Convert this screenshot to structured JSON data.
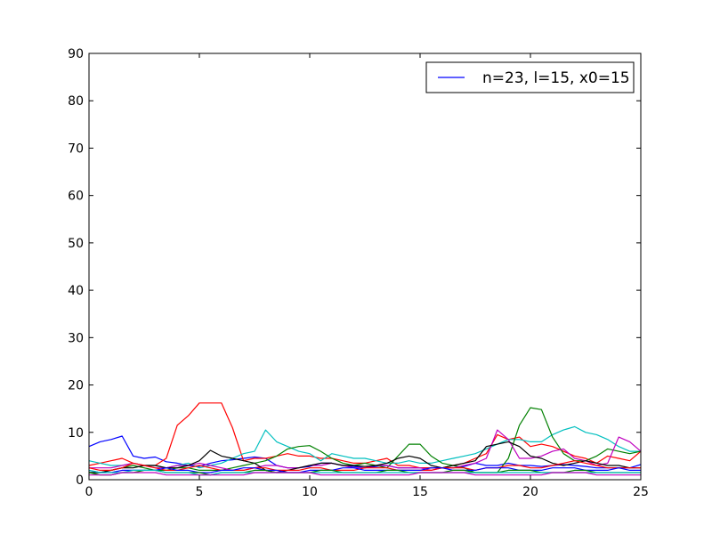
{
  "chart_data": {
    "type": "line",
    "title": "",
    "xlabel": "",
    "ylabel": "",
    "xlim": [
      0,
      25
    ],
    "ylim": [
      0,
      90
    ],
    "xticks": [
      0,
      5,
      10,
      15,
      20,
      25
    ],
    "yticks": [
      0,
      10,
      20,
      30,
      40,
      50,
      60,
      70,
      80,
      90
    ],
    "grid": false,
    "legend": {
      "position": "top-right",
      "entries": [
        "n=23, l=15, x0=15"
      ]
    },
    "x": [
      0,
      0.5,
      1,
      1.5,
      2,
      2.5,
      3,
      3.5,
      4,
      4.5,
      5,
      5.5,
      6,
      6.5,
      7,
      7.5,
      8,
      8.5,
      9,
      9.5,
      10,
      10.5,
      11,
      11.5,
      12,
      12.5,
      13,
      13.5,
      14,
      14.5,
      15,
      15.5,
      16,
      16.5,
      17,
      17.5,
      18,
      18.5,
      19,
      19.5,
      20,
      20.5,
      21,
      21.5,
      22,
      22.5,
      23,
      23.5,
      24,
      24.5,
      25
    ],
    "series": [
      {
        "color": "#0000ff",
        "values": [
          7,
          8,
          8.5,
          9.2,
          5,
          4.5,
          4.8,
          3.8,
          3.5,
          3,
          2.8,
          3.5,
          4,
          4.2,
          4.5,
          4.8,
          4.5,
          3,
          2.5,
          2.5,
          2.8,
          3.5,
          3.5,
          3,
          2.8,
          2.5,
          2.8,
          3,
          2.5,
          2.5,
          2.5,
          2.5,
          2.5,
          2.5,
          2.8,
          3.5,
          3,
          3,
          3.5,
          3,
          3,
          2.8,
          3,
          3.2,
          3,
          2.8,
          2.5,
          2.5,
          2.5,
          2.5,
          3.2
        ]
      },
      {
        "color": "#ff0000",
        "values": [
          3,
          3.5,
          4,
          4.5,
          3.5,
          3,
          3,
          4.5,
          11.5,
          13.5,
          16.2,
          16.2,
          16.2,
          11,
          4,
          4.5,
          4.5,
          5,
          5.5,
          5,
          5,
          4.5,
          4.5,
          4,
          3.5,
          3.5,
          4,
          4.5,
          3,
          3,
          2.5,
          2.5,
          2.5,
          3,
          3.5,
          4.5,
          5.5,
          9.5,
          8.5,
          9,
          7,
          7.5,
          7,
          6,
          5,
          4.5,
          3.5,
          5,
          4.5,
          4,
          6
        ]
      },
      {
        "color": "#00bfbf",
        "values": [
          4,
          3.5,
          3,
          3,
          3.5,
          3,
          3,
          2.5,
          3,
          3.5,
          2.5,
          3,
          3.5,
          4.5,
          5.5,
          6,
          10.5,
          8,
          7,
          6,
          5.5,
          4,
          5.5,
          5,
          4.5,
          4.5,
          4,
          3.5,
          3.5,
          4,
          3.5,
          3.5,
          4,
          4.5,
          5,
          5.5,
          6.5,
          7.5,
          8.5,
          8.5,
          8,
          8,
          9.5,
          10.5,
          11.2,
          10,
          9.5,
          8.5,
          7,
          6,
          6
        ]
      },
      {
        "color": "#008000",
        "values": [
          1.5,
          1.5,
          2,
          2.5,
          3,
          2.5,
          2,
          2,
          2.5,
          2.5,
          2,
          2,
          2,
          2.5,
          3,
          3.5,
          4,
          5,
          6.5,
          7,
          7.2,
          6,
          4.5,
          3.5,
          3,
          3.5,
          3,
          2.5,
          5,
          7.5,
          7.5,
          5,
          3.5,
          3,
          2.5,
          1.5,
          1.5,
          1.5,
          4.5,
          11.5,
          15.2,
          14.8,
          9,
          5.5,
          4,
          4,
          5,
          6.5,
          6,
          5.5,
          6
        ]
      },
      {
        "color": "#bf00bf",
        "values": [
          2.5,
          2.5,
          2.5,
          3,
          3.5,
          3,
          2.5,
          2.5,
          3,
          3,
          3.5,
          3,
          2.5,
          2,
          2,
          2.5,
          3,
          3,
          2.5,
          2.5,
          3,
          3,
          3.5,
          3,
          2.5,
          2.5,
          3,
          3,
          2.5,
          2.5,
          2.5,
          2,
          2.5,
          2.5,
          3,
          3.5,
          4.5,
          10.5,
          8.5,
          4.5,
          4.5,
          5,
          6,
          6.5,
          4.5,
          4,
          3,
          3.5,
          9,
          8,
          6
        ]
      },
      {
        "color": "#000000",
        "values": [
          1.5,
          1.5,
          2,
          2.5,
          2.5,
          3,
          3,
          2.5,
          2.5,
          3,
          4,
          6.2,
          5,
          4.5,
          4,
          3.5,
          2,
          1.5,
          2,
          2.5,
          3,
          3.5,
          3.5,
          3,
          3,
          2.8,
          3,
          3.5,
          4.5,
          5,
          4.5,
          3,
          2.5,
          3,
          3.5,
          4,
          7,
          7.5,
          8,
          7,
          5,
          4.5,
          3.5,
          3,
          3.5,
          4,
          3.5,
          3,
          3,
          2.5,
          2.5
        ]
      },
      {
        "color": "#ff0000",
        "values": [
          2.5,
          2,
          2,
          2.5,
          3.5,
          3,
          2.5,
          2,
          2,
          2.5,
          3,
          2.5,
          2,
          2,
          2,
          2.5,
          2.5,
          2,
          2,
          2,
          2.5,
          2.5,
          2,
          2,
          2,
          2.5,
          2.5,
          2.5,
          2,
          2,
          2,
          2,
          2.5,
          2.5,
          2.5,
          2,
          2.5,
          2.5,
          3,
          3,
          2.5,
          2.5,
          3,
          3.5,
          4,
          3.5,
          3,
          2.5,
          2.5,
          2.5,
          2.5
        ]
      },
      {
        "color": "#0000ff",
        "values": [
          2,
          1.5,
          1.5,
          2,
          2,
          2,
          2,
          2.5,
          2,
          2,
          1.5,
          1.5,
          2,
          2,
          2.5,
          2.5,
          2,
          2,
          1.5,
          1.5,
          2,
          2,
          2,
          2.5,
          2.5,
          2,
          2,
          2,
          2,
          2,
          2,
          2.5,
          2.5,
          2,
          2,
          2,
          2.5,
          2.5,
          2.5,
          2,
          2,
          2,
          2.5,
          2.5,
          2.5,
          2,
          2,
          2,
          2.5,
          2,
          2
        ]
      },
      {
        "color": "#008000",
        "values": [
          1.5,
          1,
          1,
          1.5,
          1.5,
          2,
          2,
          1.5,
          1.5,
          1.5,
          1.5,
          1,
          1.5,
          1.5,
          1.5,
          2,
          2,
          1.5,
          1.5,
          1.5,
          1.5,
          2,
          2,
          1.5,
          1.5,
          1.5,
          1.5,
          2,
          2,
          1.5,
          1.5,
          1.5,
          1.5,
          2,
          2,
          1.5,
          1.5,
          1.5,
          2,
          2,
          2,
          1.5,
          1.5,
          1.5,
          2,
          2,
          1.5,
          1.5,
          1.5,
          1.5,
          1.5
        ]
      },
      {
        "color": "#00bfbf",
        "values": [
          2,
          1.5,
          1.5,
          1.5,
          2,
          2,
          2,
          1.5,
          1.5,
          1.5,
          1,
          1,
          1.5,
          1.5,
          1.5,
          1.5,
          1.5,
          1.5,
          1.5,
          1.5,
          1.5,
          1.5,
          1.5,
          1.5,
          1.5,
          1.5,
          1.5,
          1.5,
          1.5,
          1.5,
          1.5,
          1.5,
          1.5,
          1.5,
          1.5,
          1.5,
          1.5,
          1.5,
          1.5,
          1.5,
          1.5,
          1.5,
          1.5,
          1.5,
          1.5,
          1.5,
          1.5,
          1.5,
          1.5,
          1.5,
          1.5
        ]
      },
      {
        "color": "#bf00bf",
        "values": [
          1,
          1,
          1,
          1.5,
          1.5,
          1.5,
          1.5,
          1,
          1,
          1,
          1,
          1,
          1,
          1,
          1,
          1.5,
          1.5,
          1.5,
          1.5,
          1.5,
          1.5,
          1,
          1,
          1,
          1,
          1,
          1,
          1,
          1,
          1,
          1.5,
          1.5,
          1.5,
          1.5,
          1.5,
          1,
          1,
          1,
          1,
          1,
          1,
          1,
          1.5,
          1.5,
          1.5,
          1.5,
          1,
          1,
          1,
          1,
          1
        ]
      }
    ]
  }
}
